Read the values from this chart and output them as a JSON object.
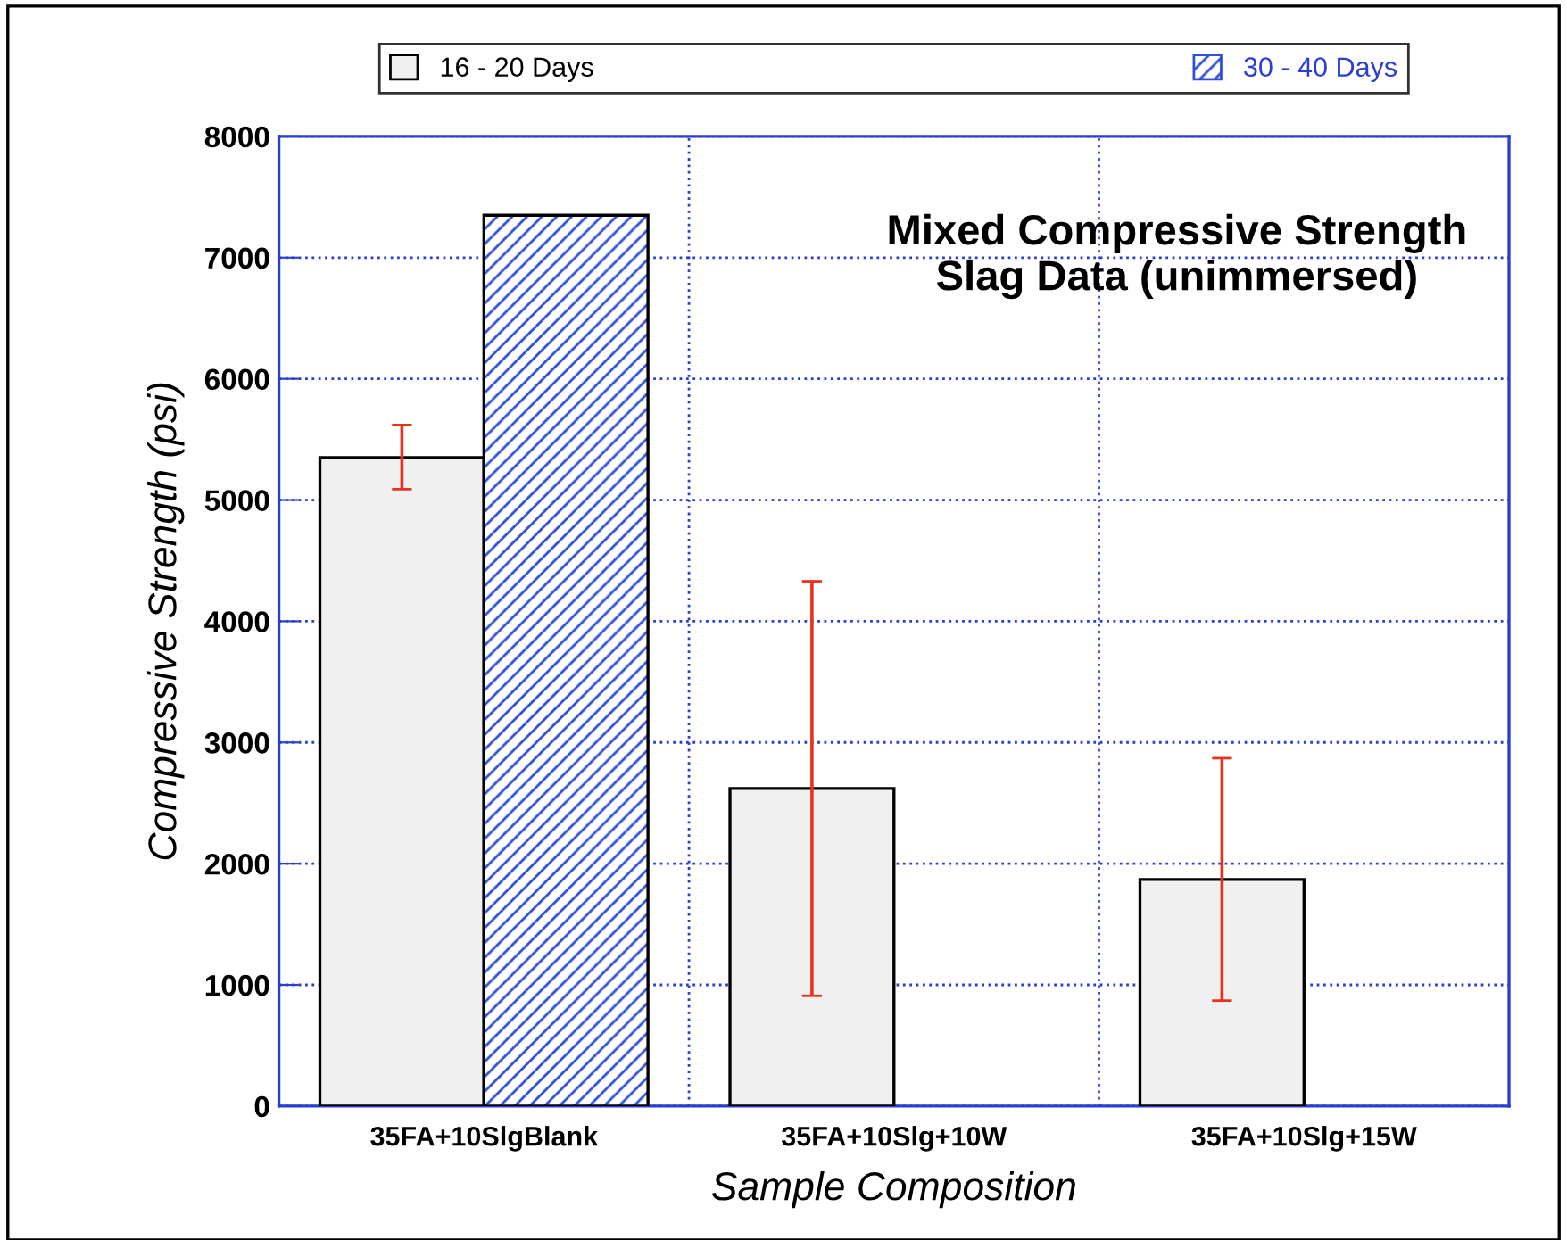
{
  "chart_data": {
    "type": "bar",
    "title": "Mixed Compressive Strength\nSlag Data (unimmersed)",
    "xlabel": "Sample Composition",
    "ylabel": "Compressive Strength (psi)",
    "categories": [
      "35FA+10SlgBlank",
      "35FA+10Slg+10W",
      "35FA+10Slg+15W"
    ],
    "series": [
      {
        "name": "16 - 20 Days",
        "color": "#f0f0f0",
        "values": [
          5350,
          2620,
          1870
        ],
        "errors": [
          [
            5090,
            5620
          ],
          [
            910,
            4330
          ],
          [
            870,
            2870
          ]
        ]
      },
      {
        "name": "30 - 40 Days",
        "color": "#3050d8",
        "values": [
          7350,
          null,
          null
        ]
      }
    ],
    "ylim": [
      0,
      8000
    ],
    "yticks": [
      0,
      1000,
      2000,
      3000,
      4000,
      5000,
      6000,
      7000,
      8000
    ],
    "grid": true,
    "legend": "top"
  }
}
